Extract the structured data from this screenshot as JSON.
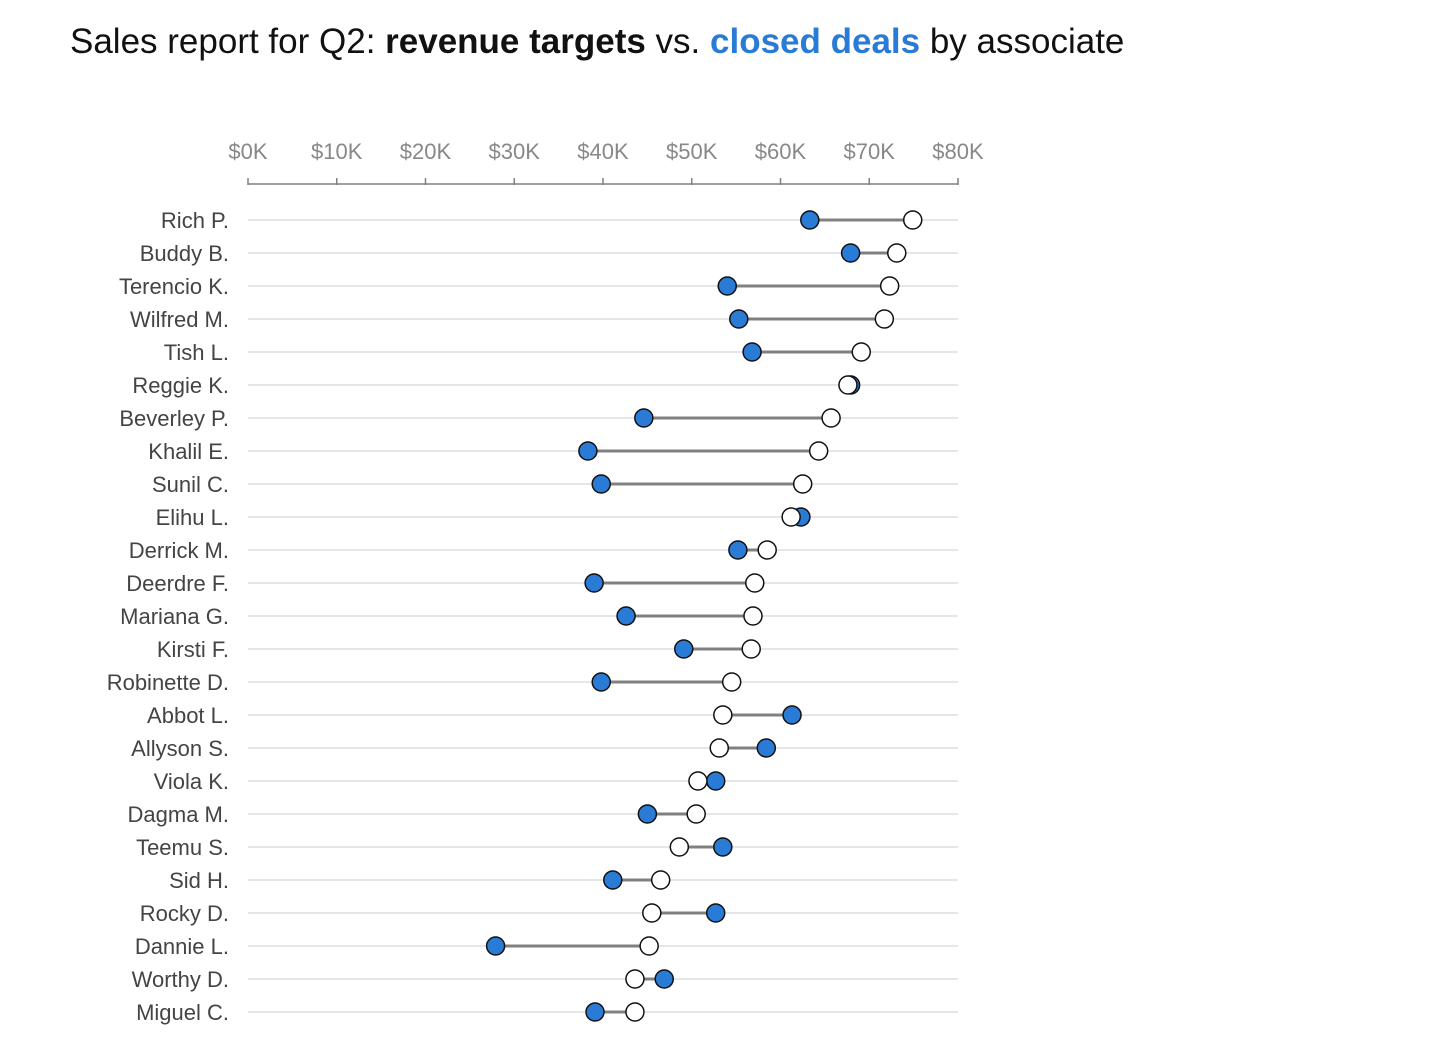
{
  "title": {
    "prefix": "Sales report for Q2: ",
    "series1": "revenue targets",
    "middle": " vs. ",
    "series2": "closed deals",
    "suffix": " by associate"
  },
  "colors": {
    "closed": "#2a7bd6",
    "target": "#ffffff",
    "connector": "#808080",
    "grid": "#dddddd",
    "axis": "#808080",
    "label": "#444444"
  },
  "chart_data": {
    "type": "dumbbell",
    "xlim": [
      0,
      80
    ],
    "x_unit": "$K",
    "xticks": [
      "$0K",
      "$10K",
      "$20K",
      "$30K",
      "$40K",
      "$50K",
      "$60K",
      "$70K",
      "$80K"
    ],
    "xtick_values": [
      0,
      10,
      20,
      30,
      40,
      50,
      60,
      70,
      80
    ],
    "axis_position": "top",
    "grid": true,
    "series": [
      {
        "name": "revenue targets",
        "marker": "open-circle"
      },
      {
        "name": "closed deals",
        "marker": "blue-circle"
      }
    ],
    "categories": [
      "Rich P.",
      "Buddy B.",
      "Terencio K.",
      "Wilfred M.",
      "Tish L.",
      "Reggie K.",
      "Beverley P.",
      "Khalil E.",
      "Sunil C.",
      "Elihu L.",
      "Derrick M.",
      "Deerdre F.",
      "Mariana G.",
      "Kirsti F.",
      "Robinette D.",
      "Abbot L.",
      "Allyson S.",
      "Viola K.",
      "Dagma M.",
      "Teemu S.",
      "Sid H.",
      "Rocky D.",
      "Dannie L.",
      "Worthy D.",
      "Miguel C."
    ],
    "targets": [
      74.9,
      73.1,
      72.3,
      71.7,
      69.1,
      67.6,
      65.7,
      64.3,
      62.5,
      61.2,
      58.5,
      57.1,
      56.9,
      56.7,
      54.5,
      53.5,
      53.1,
      50.7,
      50.5,
      48.6,
      46.5,
      45.5,
      45.2,
      43.6,
      43.6
    ],
    "closed": [
      63.3,
      67.9,
      54.0,
      55.3,
      56.8,
      67.9,
      44.6,
      38.3,
      39.8,
      62.3,
      55.2,
      39.0,
      42.6,
      49.1,
      39.8,
      61.3,
      58.4,
      52.7,
      45.0,
      53.5,
      41.1,
      52.7,
      27.9,
      46.9,
      39.1
    ]
  }
}
